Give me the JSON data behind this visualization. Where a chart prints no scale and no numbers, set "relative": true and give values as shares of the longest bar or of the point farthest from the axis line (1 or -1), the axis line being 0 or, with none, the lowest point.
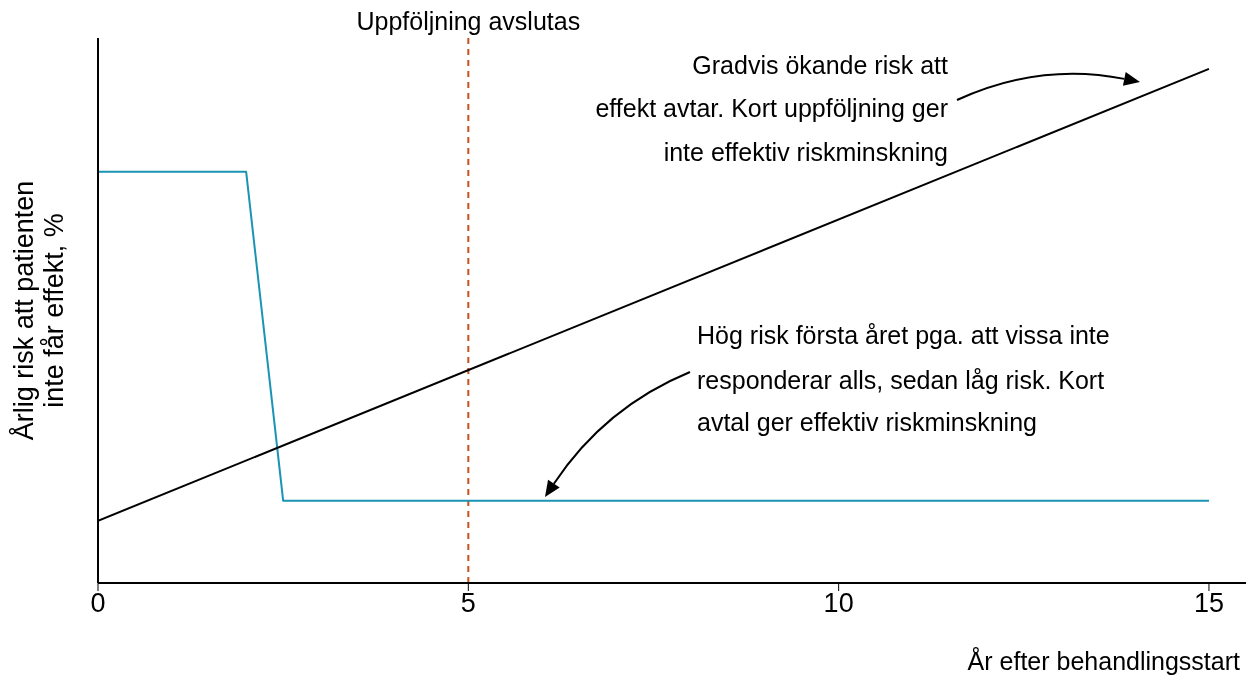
{
  "chart_data": {
    "type": "line",
    "relative": true,
    "xlabel": "År efter behandlingsstart",
    "ylabel": "Årlig risk att patienten\ninte får effekt, %",
    "xlim": [
      0,
      15.5
    ],
    "xticks": [
      0,
      5,
      10,
      15
    ],
    "marker": "none",
    "series": [
      {
        "color": "#1a93b5",
        "x": [
          0,
          2,
          2.5,
          15
        ],
        "values": [
          0.8,
          0.8,
          0.16,
          0.16
        ]
      },
      {
        "color": "#000000",
        "x": [
          0,
          15
        ],
        "values": [
          0.121,
          1
        ]
      }
    ],
    "ref_lines": [
      {
        "axis": "x",
        "value": 5,
        "label": "Uppföljning avslutas",
        "color": "#c8501e",
        "line_style": "dashed"
      }
    ],
    "annotations": [
      "Gradvis ökande risk att\neffekt avtar. Kort uppföljning ger\ninte effektiv riskminskning",
      "Hög risk första året pga. att vissa inte\nresponderar alls, sedan låg risk. Kort\navtal ger effektiv riskminskning"
    ]
  }
}
